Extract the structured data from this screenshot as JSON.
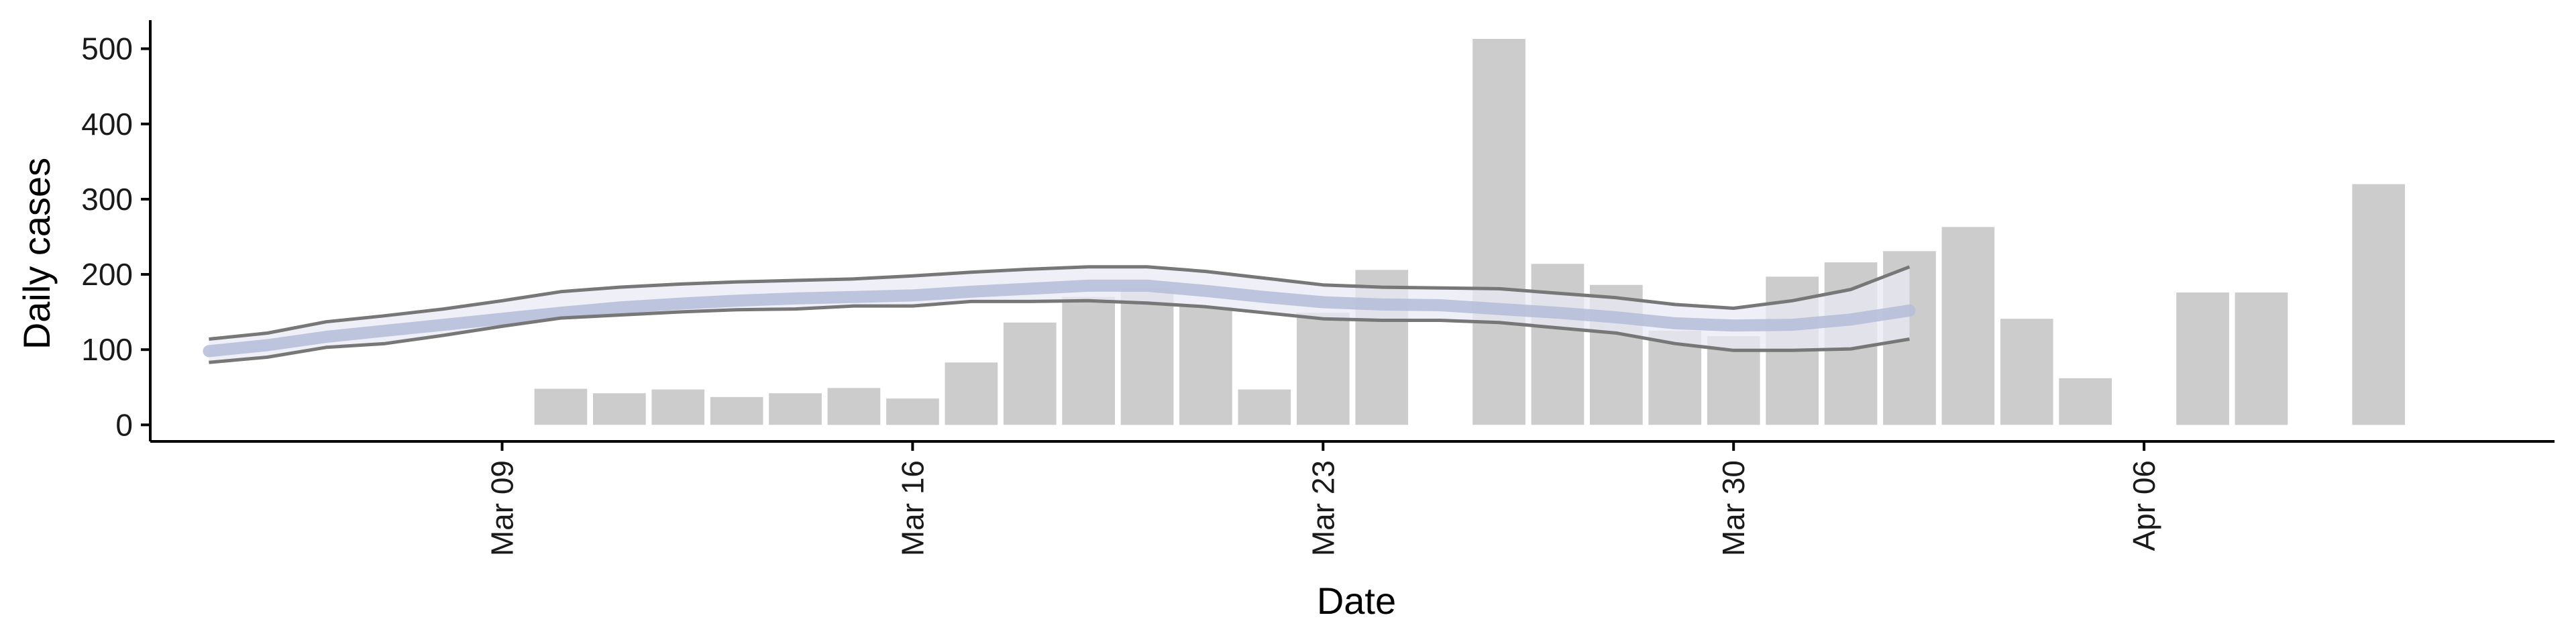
{
  "chart_data": {
    "type": "bar",
    "xlabel": "Date",
    "ylabel": "Daily cases",
    "title": "",
    "xlim": [
      "2020-03-03",
      "2020-04-13"
    ],
    "ylim": [
      -22,
      538
    ],
    "x_ticks": [
      {
        "date": "2020-03-09",
        "label": "Mar 09"
      },
      {
        "date": "2020-03-16",
        "label": "Mar 16"
      },
      {
        "date": "2020-03-23",
        "label": "Mar 23"
      },
      {
        "date": "2020-03-30",
        "label": "Mar 30"
      },
      {
        "date": "2020-04-06",
        "label": "Apr 06"
      }
    ],
    "y_ticks": [
      0,
      100,
      200,
      300,
      400,
      500
    ],
    "bars": [
      {
        "date": "2020-03-10",
        "value": 48
      },
      {
        "date": "2020-03-11",
        "value": 42
      },
      {
        "date": "2020-03-12",
        "value": 47
      },
      {
        "date": "2020-03-13",
        "value": 37
      },
      {
        "date": "2020-03-14",
        "value": 42
      },
      {
        "date": "2020-03-15",
        "value": 49
      },
      {
        "date": "2020-03-16",
        "value": 35
      },
      {
        "date": "2020-03-17",
        "value": 83
      },
      {
        "date": "2020-03-18",
        "value": 136
      },
      {
        "date": "2020-03-19",
        "value": 170
      },
      {
        "date": "2020-03-20",
        "value": 181
      },
      {
        "date": "2020-03-21",
        "value": 157
      },
      {
        "date": "2020-03-22",
        "value": 47
      },
      {
        "date": "2020-03-23",
        "value": 149
      },
      {
        "date": "2020-03-24",
        "value": 206
      },
      {
        "date": "2020-03-26",
        "value": 513
      },
      {
        "date": "2020-03-27",
        "value": 214
      },
      {
        "date": "2020-03-28",
        "value": 186
      },
      {
        "date": "2020-03-29",
        "value": 125
      },
      {
        "date": "2020-03-30",
        "value": 118
      },
      {
        "date": "2020-03-31",
        "value": 197
      },
      {
        "date": "2020-04-01",
        "value": 216
      },
      {
        "date": "2020-04-02",
        "value": 231
      },
      {
        "date": "2020-04-03",
        "value": 263
      },
      {
        "date": "2020-04-04",
        "value": 141
      },
      {
        "date": "2020-04-05",
        "value": 62
      },
      {
        "date": "2020-04-07",
        "value": 176
      },
      {
        "date": "2020-04-08",
        "value": 176
      },
      {
        "date": "2020-04-10",
        "value": 320
      }
    ],
    "fit_series": {
      "dates": [
        "2020-03-04",
        "2020-03-05",
        "2020-03-06",
        "2020-03-07",
        "2020-03-08",
        "2020-03-09",
        "2020-03-10",
        "2020-03-11",
        "2020-03-12",
        "2020-03-13",
        "2020-03-14",
        "2020-03-15",
        "2020-03-16",
        "2020-03-17",
        "2020-03-18",
        "2020-03-19",
        "2020-03-20",
        "2020-03-21",
        "2020-03-22",
        "2020-03-23",
        "2020-03-24",
        "2020-03-25",
        "2020-03-26",
        "2020-03-27",
        "2020-03-28",
        "2020-03-29",
        "2020-03-30",
        "2020-03-31",
        "2020-04-01",
        "2020-04-02"
      ],
      "mean": [
        98,
        106,
        117,
        125,
        133,
        141,
        149,
        156,
        161,
        165,
        168,
        170,
        172,
        177,
        181,
        185,
        185,
        178,
        170,
        163,
        160,
        159,
        154,
        149,
        143,
        135,
        132,
        133,
        140,
        152
      ],
      "upper": [
        114,
        122,
        137,
        145,
        154,
        165,
        177,
        183,
        187,
        190,
        192,
        194,
        198,
        203,
        207,
        210,
        210,
        204,
        195,
        186,
        183,
        182,
        181,
        175,
        169,
        160,
        155,
        165,
        180,
        210
      ],
      "lower": [
        83,
        90,
        103,
        108,
        119,
        131,
        142,
        146,
        150,
        153,
        154,
        158,
        158,
        164,
        164,
        165,
        162,
        157,
        149,
        141,
        139,
        139,
        136,
        129,
        122,
        108,
        99,
        99,
        101,
        114
      ]
    },
    "colors": {
      "bars": "#cccccc",
      "band_fill": "#e8eaf4",
      "mean_line": "#b4bcd8",
      "bound_lines": "#777777",
      "axis": "#000000"
    }
  }
}
